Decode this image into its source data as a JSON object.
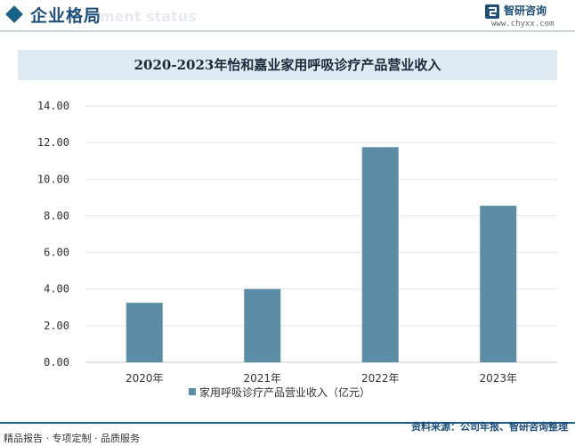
{
  "header": {
    "title": "企业格局",
    "ghost_text": "ment status"
  },
  "brand": {
    "name": "智研咨询",
    "url": "www.chyxx.com",
    "color": "#1f4e79"
  },
  "footer": {
    "left_text": "精品报告 · 专项定制 · 品质服务",
    "source_text": "资料来源：公司年报、智研咨询整理"
  },
  "chart_data": {
    "type": "bar",
    "title": "2020-2023年怡和嘉业家用呼吸诊疗产品营业收入",
    "categories": [
      "2020年",
      "2021年",
      "2022年",
      "2023年"
    ],
    "series": [
      {
        "name": "家用呼吸诊疗产品营业收入（亿元）",
        "values": [
          3.25,
          4.0,
          11.75,
          8.55
        ],
        "color": "#5b8ea6"
      }
    ],
    "ylim": [
      0,
      14
    ],
    "yticks": [
      "0.00",
      "2.00",
      "4.00",
      "6.00",
      "8.00",
      "10.00",
      "12.00",
      "14.00"
    ],
    "grid": true,
    "legend_position": "bottom"
  }
}
